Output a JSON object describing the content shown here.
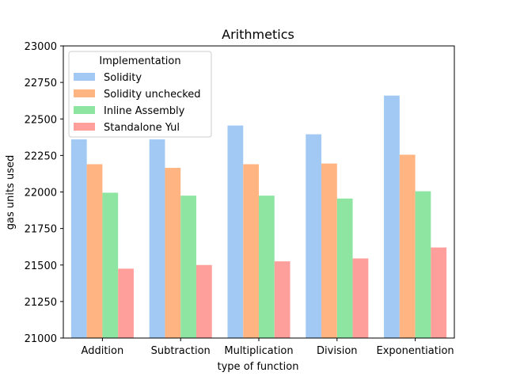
{
  "chart_data": {
    "type": "bar",
    "title": "Arithmetics",
    "xlabel": "type of function",
    "ylabel": "gas units used",
    "categories": [
      "Addition",
      "Subtraction",
      "Multiplication",
      "Division",
      "Exponentiation"
    ],
    "ylim": [
      21000,
      23000
    ],
    "yticks": [
      21000,
      21250,
      21500,
      21750,
      22000,
      22250,
      22500,
      22750,
      23000
    ],
    "grid": false,
    "legend": {
      "title": "Implementation",
      "placement": "top-left"
    },
    "series": [
      {
        "name": "Solidity",
        "color": "#a1c9f4",
        "values": [
          22360,
          22360,
          22455,
          22395,
          22660
        ]
      },
      {
        "name": "Solidity unchecked",
        "color": "#ffb482",
        "values": [
          22190,
          22165,
          22190,
          22195,
          22255
        ]
      },
      {
        "name": "Inline Assembly",
        "color": "#8de5a1",
        "values": [
          21995,
          21975,
          21975,
          21955,
          22005
        ]
      },
      {
        "name": "Standalone Yul",
        "color": "#ff9f9b",
        "values": [
          21475,
          21500,
          21525,
          21545,
          21620
        ]
      }
    ]
  }
}
